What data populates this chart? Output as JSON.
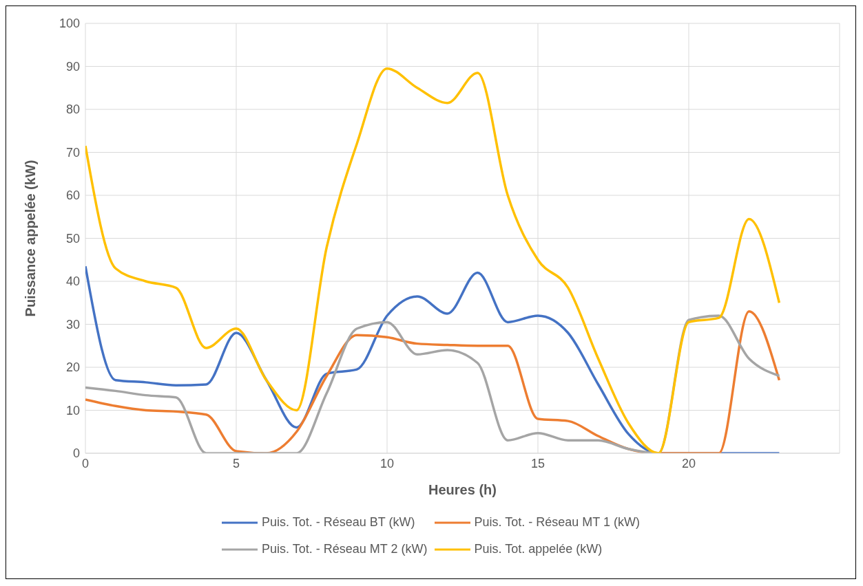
{
  "chart_data": {
    "type": "line",
    "xlabel": "Heures (h)",
    "ylabel": "Puissance appelée (kW)",
    "x": [
      0,
      1,
      2,
      3,
      4,
      5,
      6,
      7,
      8,
      9,
      10,
      11,
      12,
      13,
      14,
      15,
      16,
      17,
      18,
      19,
      20,
      21,
      22,
      23
    ],
    "xlim": [
      0,
      25
    ],
    "xticks": [
      0,
      5,
      10,
      15,
      20
    ],
    "ylim": [
      0,
      100
    ],
    "yticks": [
      0,
      10,
      20,
      30,
      40,
      50,
      60,
      70,
      80,
      90,
      100
    ],
    "grid": true,
    "legend": "bottom",
    "marker": "none",
    "line_style": "solid",
    "series": [
      {
        "name": "Puis. Tot. - Réseau BT (kW)",
        "color": "#4472c4",
        "values": [
          43.5,
          17,
          16.5,
          15.8,
          16,
          28,
          17,
          6,
          18.5,
          19.5,
          32,
          36.5,
          32.5,
          42,
          30.5,
          32,
          28,
          16,
          4.5,
          0,
          0,
          0,
          0,
          0
        ]
      },
      {
        "name": "Puis. Tot. - Réseau MT 1 (kW)",
        "color": "#ed7d31",
        "values": [
          12.5,
          11,
          10,
          9.7,
          9,
          0.5,
          0,
          5,
          18,
          27.5,
          27,
          25.5,
          25.2,
          25,
          25,
          8,
          7.5,
          4,
          1,
          0,
          0,
          0,
          33,
          17
        ]
      },
      {
        "name": "Puis. Tot. - Réseau MT 2 (kW)",
        "color": "#a5a5a5",
        "values": [
          15.3,
          14.5,
          13.5,
          13,
          0,
          0,
          0,
          0,
          14,
          29,
          30.5,
          23,
          24,
          21,
          3,
          4.7,
          3,
          3,
          1,
          0,
          31,
          32,
          22,
          18
        ]
      },
      {
        "name": "Puis. Tot. appelée (kW)",
        "color": "#ffc000",
        "values": [
          71.5,
          43,
          40,
          38.5,
          24.5,
          29,
          17,
          10,
          48,
          72,
          89.5,
          85,
          81.5,
          88.5,
          60,
          45,
          38.5,
          22,
          7,
          0,
          30.5,
          31.5,
          54.5,
          35
        ]
      }
    ]
  }
}
